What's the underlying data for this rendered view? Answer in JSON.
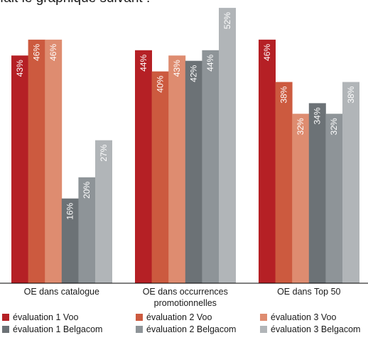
{
  "heading": "fait le graphique suivant :",
  "chart_data": {
    "type": "bar",
    "categories": [
      "OE dans catalogue",
      "OE dans occurrences promotionnelles",
      "OE dans Top 50"
    ],
    "category_lines": [
      [
        "OE dans catalogue"
      ],
      [
        "OE dans occurrences",
        "promotionnelles"
      ],
      [
        "OE dans Top 50"
      ]
    ],
    "series": [
      {
        "name": "évaluation 1 Voo",
        "color": "#b52025",
        "values": [
          43,
          44,
          46
        ],
        "labels": [
          "43%",
          "44%",
          "46%"
        ]
      },
      {
        "name": "évaluation 2 Voo",
        "color": "#cc5a3f",
        "values": [
          46,
          40,
          38
        ],
        "labels": [
          "46%",
          "40%",
          "38%"
        ]
      },
      {
        "name": "évaluation 3 Voo",
        "color": "#de8c70",
        "values": [
          46,
          43,
          32
        ],
        "labels": [
          "46%",
          "43%",
          "32%"
        ]
      },
      {
        "name": "évaluation 1 Belgacom",
        "color": "#6c7276",
        "values": [
          16,
          42,
          34
        ],
        "labels": [
          "16%",
          "42%",
          "34%"
        ]
      },
      {
        "name": "évaluation 2 Belgacom",
        "color": "#8e9498",
        "values": [
          20,
          44,
          32
        ],
        "labels": [
          "20%",
          "44%",
          "32%"
        ]
      },
      {
        "name": "évaluation 3 Belgacom",
        "color": "#b1b5b8",
        "values": [
          27,
          52,
          38
        ],
        "labels": [
          "27%",
          "52%",
          "38%"
        ]
      }
    ],
    "ylim": [
      0,
      52
    ],
    "legend_position": "bottom",
    "grid": false
  }
}
